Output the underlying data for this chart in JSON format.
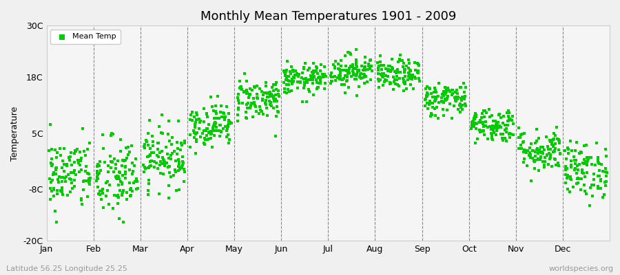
{
  "title": "Monthly Mean Temperatures 1901 - 2009",
  "ylabel": "Temperature",
  "subtitle_left": "Latitude 56.25 Longitude 25.25",
  "subtitle_right": "worldspecies.org",
  "ylim": [
    -20,
    30
  ],
  "yticks": [
    -20,
    -8,
    5,
    18,
    30
  ],
  "ytick_labels": [
    "-20C",
    "-8C",
    "5C",
    "18C",
    "30C"
  ],
  "months": [
    "Jan",
    "Feb",
    "Mar",
    "Apr",
    "May",
    "Jun",
    "Jul",
    "Aug",
    "Sep",
    "Oct",
    "Nov",
    "Dec"
  ],
  "dot_color": "#00CC00",
  "dot_size": 6,
  "background_color": "#F0F0F0",
  "plot_bg_color": "#F5F5F5",
  "legend_label": "Mean Temp",
  "n_years": 109,
  "seed": 42,
  "monthly_means": [
    -4.5,
    -5.5,
    -0.5,
    7.0,
    13.0,
    17.5,
    19.5,
    18.5,
    13.0,
    7.0,
    1.0,
    -3.5
  ],
  "monthly_stds": [
    4.2,
    4.8,
    3.5,
    2.5,
    2.5,
    1.8,
    2.0,
    1.8,
    2.0,
    2.0,
    2.5,
    3.2
  ]
}
